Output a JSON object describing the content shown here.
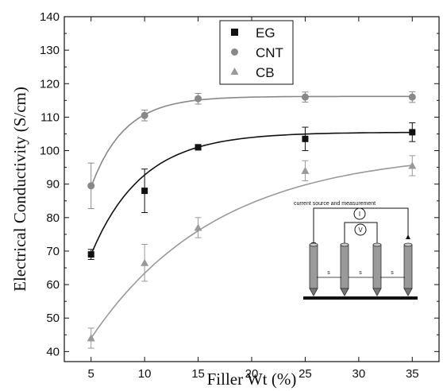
{
  "chart_data": {
    "type": "scatter",
    "title": "",
    "xlabel": "Filler Wt (%)",
    "ylabel": "Electrical Conductivity (S/cm)",
    "xlim": [
      2.5,
      37.5
    ],
    "ylim": [
      37,
      140
    ],
    "xticks": [
      5,
      10,
      15,
      20,
      25,
      30,
      35
    ],
    "yticks": [
      40,
      50,
      60,
      70,
      80,
      90,
      100,
      110,
      120,
      130,
      140
    ],
    "grid": false,
    "legend_position": "top-center",
    "series": [
      {
        "name": "EG",
        "marker": "square",
        "color": "#111111",
        "x": [
          5,
          10,
          15,
          25,
          35
        ],
        "y": [
          69,
          88,
          101,
          103.5,
          105.5
        ],
        "err": [
          1.5,
          6.5,
          0.8,
          3.5,
          2.8
        ],
        "fit": {
          "a": 105.5,
          "b": 36.5,
          "k": 0.21
        }
      },
      {
        "name": "CNT",
        "marker": "circle",
        "color": "#888888",
        "x": [
          5,
          10,
          15,
          25,
          35
        ],
        "y": [
          89.5,
          110.5,
          115.5,
          116,
          116
        ],
        "err": [
          6.8,
          1.6,
          1.6,
          1.5,
          1.6
        ],
        "fit": {
          "a": 116.2,
          "b": 27,
          "k": 0.32
        }
      },
      {
        "name": "CB",
        "marker": "triangle",
        "color": "#999999",
        "x": [
          5,
          10,
          15,
          25,
          35
        ],
        "y": [
          44,
          66.5,
          77,
          94,
          95.5
        ],
        "err": [
          3,
          5.5,
          3,
          3,
          3
        ],
        "fit": {
          "a": 100,
          "b": 56,
          "k": 0.085
        }
      }
    ]
  },
  "inset": {
    "title": "current source and measurement",
    "current_symbol": "I",
    "voltage_symbol": "V",
    "spacing_labels": [
      "s",
      "s",
      "s"
    ]
  }
}
